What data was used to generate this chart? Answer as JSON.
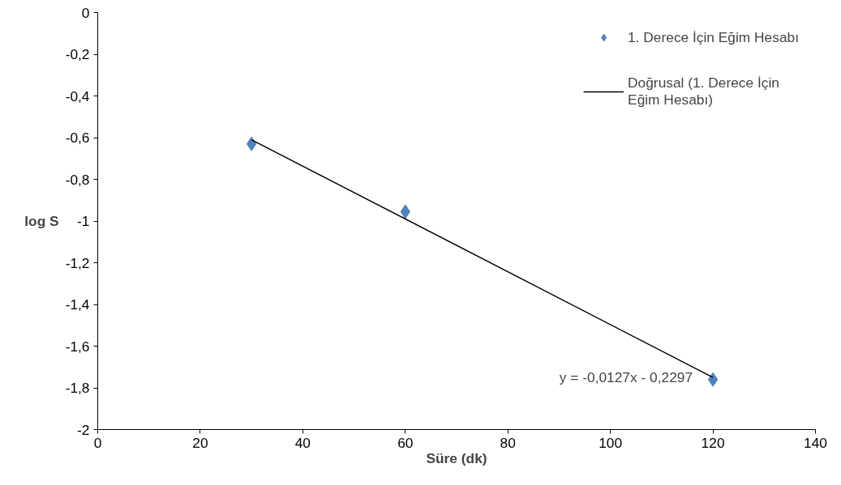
{
  "chart_data": {
    "type": "scatter",
    "xlabel": "Süre (dk)",
    "ylabel": "log S",
    "xlim": [
      0,
      140
    ],
    "ylim": [
      -2,
      0
    ],
    "xticks": [
      0,
      20,
      40,
      60,
      80,
      100,
      120,
      140
    ],
    "yticks": [
      0,
      {
        "value": -0.2,
        "label": "-0,2"
      },
      {
        "value": -0.4,
        "label": "-0,4"
      },
      {
        "value": -0.6,
        "label": "-0,6"
      },
      {
        "value": -0.8,
        "label": "-0,8"
      },
      {
        "value": -1,
        "label": "-1"
      },
      {
        "value": -1.2,
        "label": "-1,2"
      },
      {
        "value": -1.4,
        "label": "-1,4"
      },
      {
        "value": -1.6,
        "label": "-1,6"
      },
      {
        "value": -1.8,
        "label": "-1,8"
      },
      {
        "value": -2,
        "label": "-2"
      }
    ],
    "grid": false,
    "legend": "top right",
    "series": [
      {
        "name": "1. Derece İçin Eğim Hesabı",
        "marker": "diamond",
        "color": "#4f81bd",
        "x": [
          30,
          60,
          120
        ],
        "values": [
          -0.63,
          -0.955,
          -1.76
        ]
      },
      {
        "name": "Doğrusal (1. Derece İçin\nEğim Hesabı)",
        "type": "line",
        "color": "#000000",
        "x": [
          30,
          120
        ],
        "values": [
          -0.61,
          -1.75
        ],
        "line_style": "solid"
      }
    ],
    "annotations": [
      "y = -0,0127x - 0,2297"
    ]
  }
}
